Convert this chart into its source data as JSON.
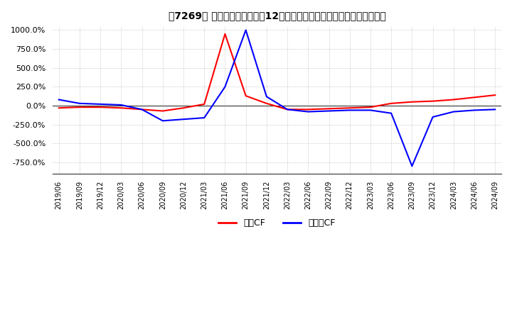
{
  "title": "　7269、キャッシュフローの12か月移動合計の対前年同期増減率の推移",
  "title_text": "[　7269、] キャッシュフローの12か月移動合計の対前年同期増減率の推移",
  "ylim": [
    -900,
    1050
  ],
  "yticks": [
    -750,
    -500,
    -250,
    0,
    250,
    500,
    750,
    1000
  ],
  "legend_labels": [
    "営業CF",
    "フリーCF"
  ],
  "line_colors": [
    "#ff0000",
    "#0000ff"
  ],
  "background_color": "#ffffff",
  "dates": [
    "2019/06",
    "2019/09",
    "2019/12",
    "2020/03",
    "2020/06",
    "2020/09",
    "2020/12",
    "2021/03",
    "2021/06",
    "2021/09",
    "2021/12",
    "2022/03",
    "2022/06",
    "2022/09",
    "2022/12",
    "2023/03",
    "2023/06",
    "2023/09",
    "2023/12",
    "2024/03",
    "2024/06",
    "2024/09"
  ],
  "values_operating": [
    -30,
    -20,
    -20,
    -30,
    -50,
    -70,
    -30,
    20,
    950,
    130,
    30,
    -50,
    -50,
    -40,
    -30,
    -20,
    30,
    50,
    60,
    80,
    110,
    140
  ],
  "values_free": [
    80,
    30,
    20,
    10,
    -50,
    -200,
    -180,
    -160,
    250,
    1000,
    120,
    -50,
    -80,
    -70,
    -60,
    -60,
    -100,
    -800,
    -150,
    -80,
    -60,
    -50
  ]
}
